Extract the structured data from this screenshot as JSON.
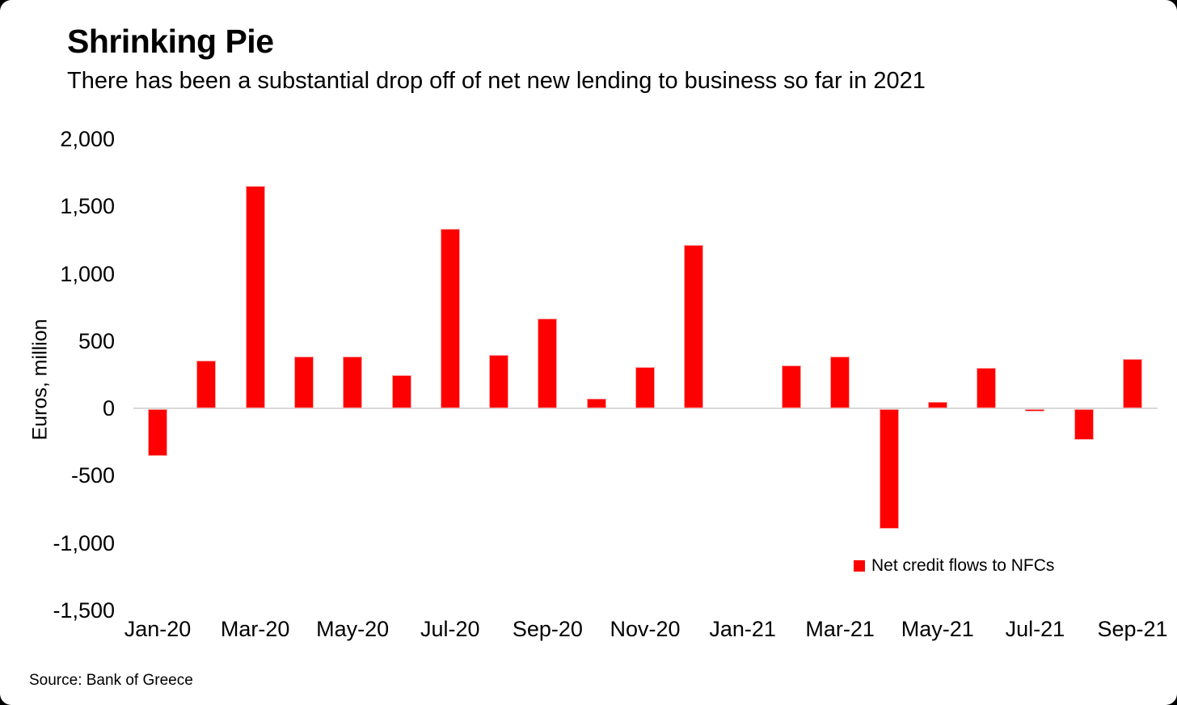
{
  "header": {
    "title": "Shrinking Pie",
    "subtitle": "There has been a substantial drop off of net new lending to business so far in 2021"
  },
  "footer": {
    "source": "Source: Bank of Greece"
  },
  "legend": {
    "label": "Net credit flows to NFCs",
    "color": "#ff0000"
  },
  "colors": {
    "bar": "#ff0000",
    "bar_border": "#fda4a4",
    "zero_line": "#d9d9d9",
    "text": "#000000",
    "background": "#ffffff"
  },
  "chart_data": {
    "type": "bar",
    "title": "Shrinking Pie",
    "subtitle": "There has been a substantial drop off of net new lending to business so far in 2021",
    "xlabel": "",
    "ylabel": "Euros, million",
    "ylim": [
      -1500,
      2000
    ],
    "yticks": [
      2000,
      1500,
      1000,
      500,
      0,
      -500,
      -1000,
      -1500
    ],
    "ytick_labels": [
      "2,000",
      "1,500",
      "1,000",
      "500",
      "0",
      "-500",
      "-1,000",
      "-1,500"
    ],
    "categories": [
      "Jan-20",
      "Feb-20",
      "Mar-20",
      "Apr-20",
      "May-20",
      "Jun-20",
      "Jul-20",
      "Aug-20",
      "Sep-20",
      "Oct-20",
      "Nov-20",
      "Dec-20",
      "Jan-21",
      "Feb-21",
      "Mar-21",
      "Apr-21",
      "May-21",
      "Jun-21",
      "Jul-21",
      "Aug-21",
      "Sep-21"
    ],
    "xtick_labels_shown": [
      "Jan-20",
      "Mar-20",
      "May-20",
      "Jul-20",
      "Sep-20",
      "Nov-20",
      "Jan-21",
      "Mar-21",
      "May-21",
      "Jul-21",
      "Sep-21"
    ],
    "series": [
      {
        "name": "Net credit flows to NFCs",
        "color": "#ff0000",
        "values": [
          -350,
          355,
          1650,
          385,
          385,
          250,
          1335,
          400,
          670,
          70,
          310,
          1215,
          0,
          320,
          385,
          -890,
          50,
          300,
          -20,
          -230,
          370
        ]
      }
    ],
    "grid": false,
    "legend_position": "inside bottom-right",
    "source": "Source: Bank of Greece"
  }
}
